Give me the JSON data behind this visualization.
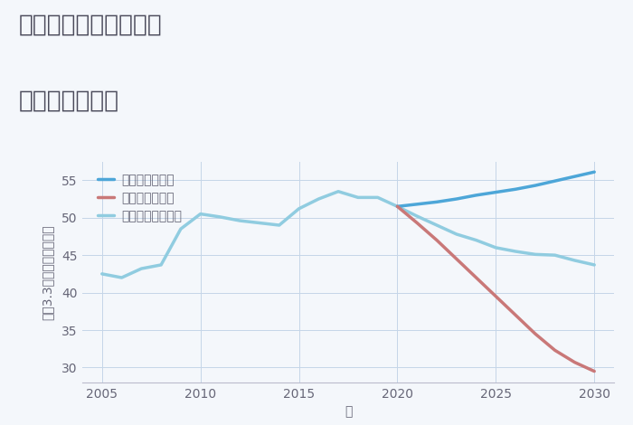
{
  "title_line1": "愛知県豊田市広川町の",
  "title_line2": "土地の価格推移",
  "xlabel": "年",
  "ylabel": "坪（3.3㎡）単価（万円）",
  "background_color": "#f4f7fb",
  "grid_color": "#c5d5e8",
  "good_scenario": {
    "label": "グッドシナリオ",
    "color": "#4da6d8",
    "years": [
      2020,
      2021,
      2022,
      2023,
      2024,
      2025,
      2026,
      2027,
      2028,
      2029,
      2030
    ],
    "values": [
      51.5,
      51.8,
      52.1,
      52.5,
      53.0,
      53.4,
      53.8,
      54.3,
      54.9,
      55.5,
      56.1
    ]
  },
  "bad_scenario": {
    "label": "バッドシナリオ",
    "color": "#c97878",
    "years": [
      2020,
      2021,
      2022,
      2023,
      2024,
      2025,
      2026,
      2027,
      2028,
      2029,
      2030
    ],
    "values": [
      51.5,
      49.3,
      47.0,
      44.5,
      42.0,
      39.5,
      37.0,
      34.5,
      32.3,
      30.7,
      29.5
    ]
  },
  "normal_scenario": {
    "label": "ノーマルシナリオ",
    "color": "#90cce0",
    "years": [
      2005,
      2006,
      2007,
      2008,
      2009,
      2010,
      2011,
      2012,
      2013,
      2014,
      2015,
      2016,
      2017,
      2018,
      2019,
      2020,
      2021,
      2022,
      2023,
      2024,
      2025,
      2026,
      2027,
      2028,
      2029,
      2030
    ],
    "values": [
      42.5,
      42.0,
      43.2,
      43.7,
      48.5,
      50.5,
      50.1,
      49.6,
      49.3,
      49.0,
      51.2,
      52.5,
      53.5,
      52.7,
      52.7,
      51.5,
      50.2,
      49.0,
      47.8,
      47.0,
      46.0,
      45.5,
      45.1,
      45.0,
      44.3,
      43.7
    ]
  },
  "xlim": [
    2004,
    2031
  ],
  "ylim": [
    28,
    57.5
  ],
  "xticks": [
    2005,
    2010,
    2015,
    2020,
    2025,
    2030
  ],
  "yticks": [
    30,
    35,
    40,
    45,
    50,
    55
  ],
  "linewidth": 2.5,
  "title_fontsize": 19,
  "label_fontsize": 10,
  "tick_fontsize": 10,
  "legend_fontsize": 10,
  "title_color": "#4a4a5a",
  "tick_color": "#666677",
  "label_color": "#666677"
}
